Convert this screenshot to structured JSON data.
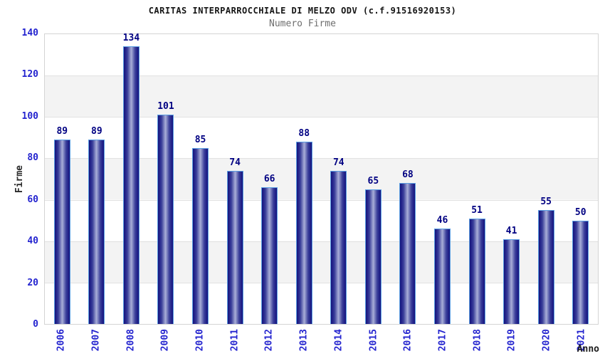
{
  "header": {
    "title": "CARITAS INTERPARROCCHIALE DI MELZO ODV (c.f.91516920153)",
    "subtitle": "Numero Firme"
  },
  "chart_data": {
    "type": "bar",
    "title": "CARITAS INTERPARROCCHIALE DI MELZO ODV (c.f.91516920153)",
    "subtitle": "Numero Firme",
    "categories": [
      "2006",
      "2007",
      "2008",
      "2009",
      "2010",
      "2011",
      "2012",
      "2013",
      "2014",
      "2015",
      "2016",
      "2017",
      "2018",
      "2019",
      "2020",
      "2021"
    ],
    "values": [
      89,
      89,
      134,
      101,
      85,
      74,
      66,
      88,
      74,
      65,
      68,
      46,
      51,
      41,
      55,
      50
    ],
    "xlabel": "Anno",
    "ylabel": "Firme",
    "ylim": [
      0,
      140
    ],
    "yticks": [
      0,
      20,
      40,
      60,
      80,
      100,
      120,
      140
    ],
    "grid": true,
    "legend": false,
    "value_labels_shown": true,
    "colors": {
      "tick_label": "#2424cf",
      "bar_border": "#5b9ee2",
      "bar_dark": "#14147c",
      "bar_light": "#a9aed8",
      "value_label": "#000082",
      "band_alt": "#f3f3f3",
      "plot_border": "#d4d4d4",
      "title": "#141414",
      "subtitle": "#6e6e6e",
      "axis_title": "#1c1c1c"
    }
  }
}
